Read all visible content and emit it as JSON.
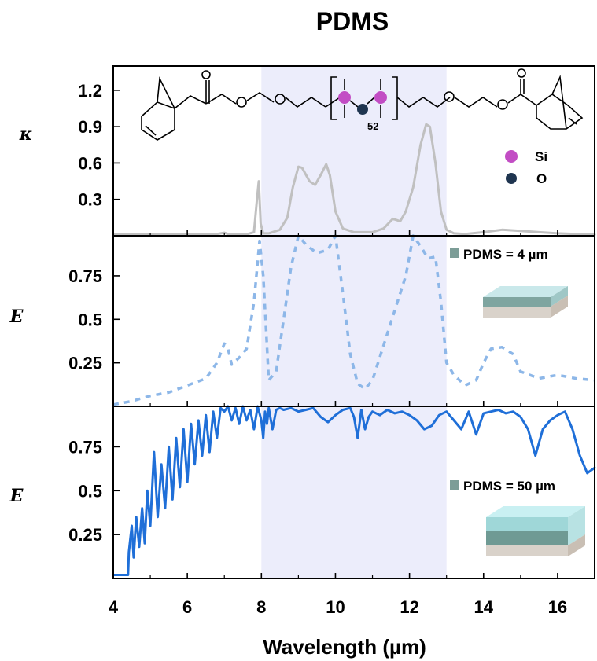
{
  "chart_data": {
    "title": "PDMS",
    "title_color": "#c00000",
    "xlabel": "Wavelength (µm)",
    "xlim": [
      4,
      17
    ],
    "x_ticks": [
      "4",
      "6",
      "8",
      "10",
      "12",
      "14",
      "16"
    ],
    "highlight_band": {
      "x": [
        8,
        13
      ],
      "color": "#ecedfb"
    },
    "molecule": {
      "repeat_unit_subscript": "52",
      "legend": [
        {
          "label": "Si",
          "color": "#c24dc4"
        },
        {
          "label": "O",
          "color": "#1f3550"
        }
      ]
    },
    "panels": [
      {
        "type": "line",
        "ylabel": "κ",
        "ylim": [
          0,
          1.4
        ],
        "y_tick_labels": [
          "1.2",
          "0.9",
          "0.6",
          "0.3"
        ],
        "y_tick_values": [
          1.2,
          0.9,
          0.6,
          0.3
        ],
        "series": [
          {
            "color": "#c0c0c0",
            "style": "solid",
            "x": [
              4.0,
              5.0,
              6.0,
              6.8,
              7.0,
              7.1,
              7.3,
              7.6,
              7.8,
              7.88,
              7.93,
              7.98,
              8.05,
              8.2,
              8.5,
              8.7,
              8.85,
              9.0,
              9.1,
              9.3,
              9.45,
              9.6,
              9.75,
              9.85,
              10.0,
              10.2,
              10.5,
              11.0,
              11.3,
              11.55,
              11.75,
              11.9,
              12.1,
              12.3,
              12.45,
              12.55,
              12.7,
              12.85,
              13.0,
              13.2,
              13.5,
              14.0,
              14.5,
              15.0,
              15.5,
              16.0,
              16.5,
              17.0
            ],
            "y": [
              0.01,
              0.01,
              0.01,
              0.015,
              0.025,
              0.015,
              0.01,
              0.012,
              0.03,
              0.3,
              0.45,
              0.1,
              0.02,
              0.02,
              0.05,
              0.15,
              0.4,
              0.57,
              0.56,
              0.45,
              0.42,
              0.5,
              0.59,
              0.5,
              0.2,
              0.06,
              0.03,
              0.03,
              0.06,
              0.14,
              0.12,
              0.2,
              0.4,
              0.75,
              0.92,
              0.9,
              0.6,
              0.2,
              0.05,
              0.02,
              0.015,
              0.03,
              0.05,
              0.04,
              0.03,
              0.02,
              0.015,
              0.01
            ]
          }
        ]
      },
      {
        "type": "line",
        "ylabel": "E",
        "ylim": [
          0,
          0.98
        ],
        "y_tick_labels": [
          "0.75",
          "0.5",
          "0.25"
        ],
        "y_tick_values": [
          0.75,
          0.5,
          0.25
        ],
        "legend": {
          "label": "PDMS = 4 µm",
          "marker_color": "#7c9d97"
        },
        "series": [
          {
            "color": "#8db7e8",
            "style": "dashed",
            "x": [
              4.0,
              4.5,
              5.0,
              5.5,
              6.0,
              6.5,
              6.8,
              7.0,
              7.1,
              7.2,
              7.4,
              7.6,
              7.8,
              7.95,
              8.05,
              8.2,
              8.4,
              8.6,
              8.8,
              9.0,
              9.2,
              9.5,
              9.8,
              10.0,
              10.2,
              10.4,
              10.6,
              10.8,
              11.0,
              11.3,
              11.6,
              11.9,
              12.1,
              12.3,
              12.5,
              12.7,
              12.85,
              13.0,
              13.2,
              13.5,
              13.8,
              14.0,
              14.2,
              14.5,
              14.8,
              15.0,
              15.5,
              16.0,
              16.5,
              17.0
            ],
            "y": [
              0.01,
              0.03,
              0.06,
              0.08,
              0.12,
              0.16,
              0.25,
              0.36,
              0.33,
              0.24,
              0.28,
              0.33,
              0.6,
              0.95,
              0.75,
              0.15,
              0.2,
              0.5,
              0.8,
              0.98,
              0.93,
              0.88,
              0.9,
              0.98,
              0.65,
              0.3,
              0.13,
              0.1,
              0.15,
              0.35,
              0.55,
              0.75,
              0.98,
              0.92,
              0.85,
              0.86,
              0.6,
              0.25,
              0.18,
              0.12,
              0.15,
              0.25,
              0.33,
              0.34,
              0.3,
              0.2,
              0.16,
              0.18,
              0.16,
              0.15
            ]
          }
        ]
      },
      {
        "type": "line",
        "ylabel": "E",
        "ylim": [
          0,
          0.98
        ],
        "y_tick_labels": [
          "0.75",
          "0.5",
          "0.25"
        ],
        "y_tick_values": [
          0.75,
          0.5,
          0.25
        ],
        "legend": {
          "label": "PDMS = 50 µm",
          "marker_color": "#7c9d97"
        },
        "series": [
          {
            "color": "#1f6fd8",
            "style": "solid",
            "x": [
              4.0,
              4.2,
              4.4,
              4.42,
              4.5,
              4.55,
              4.62,
              4.7,
              4.78,
              4.85,
              4.92,
              5.0,
              5.1,
              5.2,
              5.3,
              5.4,
              5.5,
              5.6,
              5.7,
              5.8,
              5.9,
              6.0,
              6.1,
              6.2,
              6.3,
              6.4,
              6.5,
              6.6,
              6.7,
              6.8,
              6.9,
              7.0,
              7.1,
              7.2,
              7.3,
              7.4,
              7.5,
              7.6,
              7.7,
              7.8,
              7.9,
              8.0,
              8.05,
              8.1,
              8.15,
              8.2,
              8.3,
              8.4,
              8.5,
              8.6,
              8.8,
              9.0,
              9.2,
              9.4,
              9.6,
              9.8,
              10.0,
              10.2,
              10.4,
              10.5,
              10.6,
              10.7,
              10.8,
              10.9,
              11.0,
              11.2,
              11.4,
              11.6,
              11.8,
              12.0,
              12.2,
              12.4,
              12.6,
              12.8,
              13.0,
              13.2,
              13.4,
              13.6,
              13.8,
              14.0,
              14.2,
              14.4,
              14.6,
              14.8,
              15.0,
              15.2,
              15.4,
              15.6,
              15.8,
              16.0,
              16.2,
              16.4,
              16.6,
              16.8,
              17.0
            ],
            "y": [
              0.02,
              0.02,
              0.02,
              0.15,
              0.3,
              0.12,
              0.35,
              0.18,
              0.4,
              0.2,
              0.5,
              0.3,
              0.72,
              0.35,
              0.65,
              0.4,
              0.75,
              0.45,
              0.8,
              0.52,
              0.85,
              0.55,
              0.88,
              0.65,
              0.9,
              0.7,
              0.93,
              0.72,
              0.95,
              0.8,
              0.97,
              0.95,
              0.98,
              0.9,
              0.97,
              0.88,
              0.98,
              0.9,
              0.96,
              0.85,
              0.98,
              0.9,
              0.8,
              0.95,
              0.88,
              0.97,
              0.85,
              0.96,
              0.97,
              0.96,
              0.97,
              0.95,
              0.96,
              0.97,
              0.92,
              0.89,
              0.93,
              0.96,
              0.97,
              0.92,
              0.8,
              0.96,
              0.85,
              0.92,
              0.95,
              0.93,
              0.96,
              0.94,
              0.95,
              0.93,
              0.9,
              0.85,
              0.87,
              0.93,
              0.95,
              0.9,
              0.85,
              0.95,
              0.82,
              0.94,
              0.95,
              0.96,
              0.94,
              0.95,
              0.92,
              0.85,
              0.7,
              0.85,
              0.9,
              0.93,
              0.95,
              0.85,
              0.7,
              0.6,
              0.63
            ]
          }
        ]
      }
    ]
  }
}
